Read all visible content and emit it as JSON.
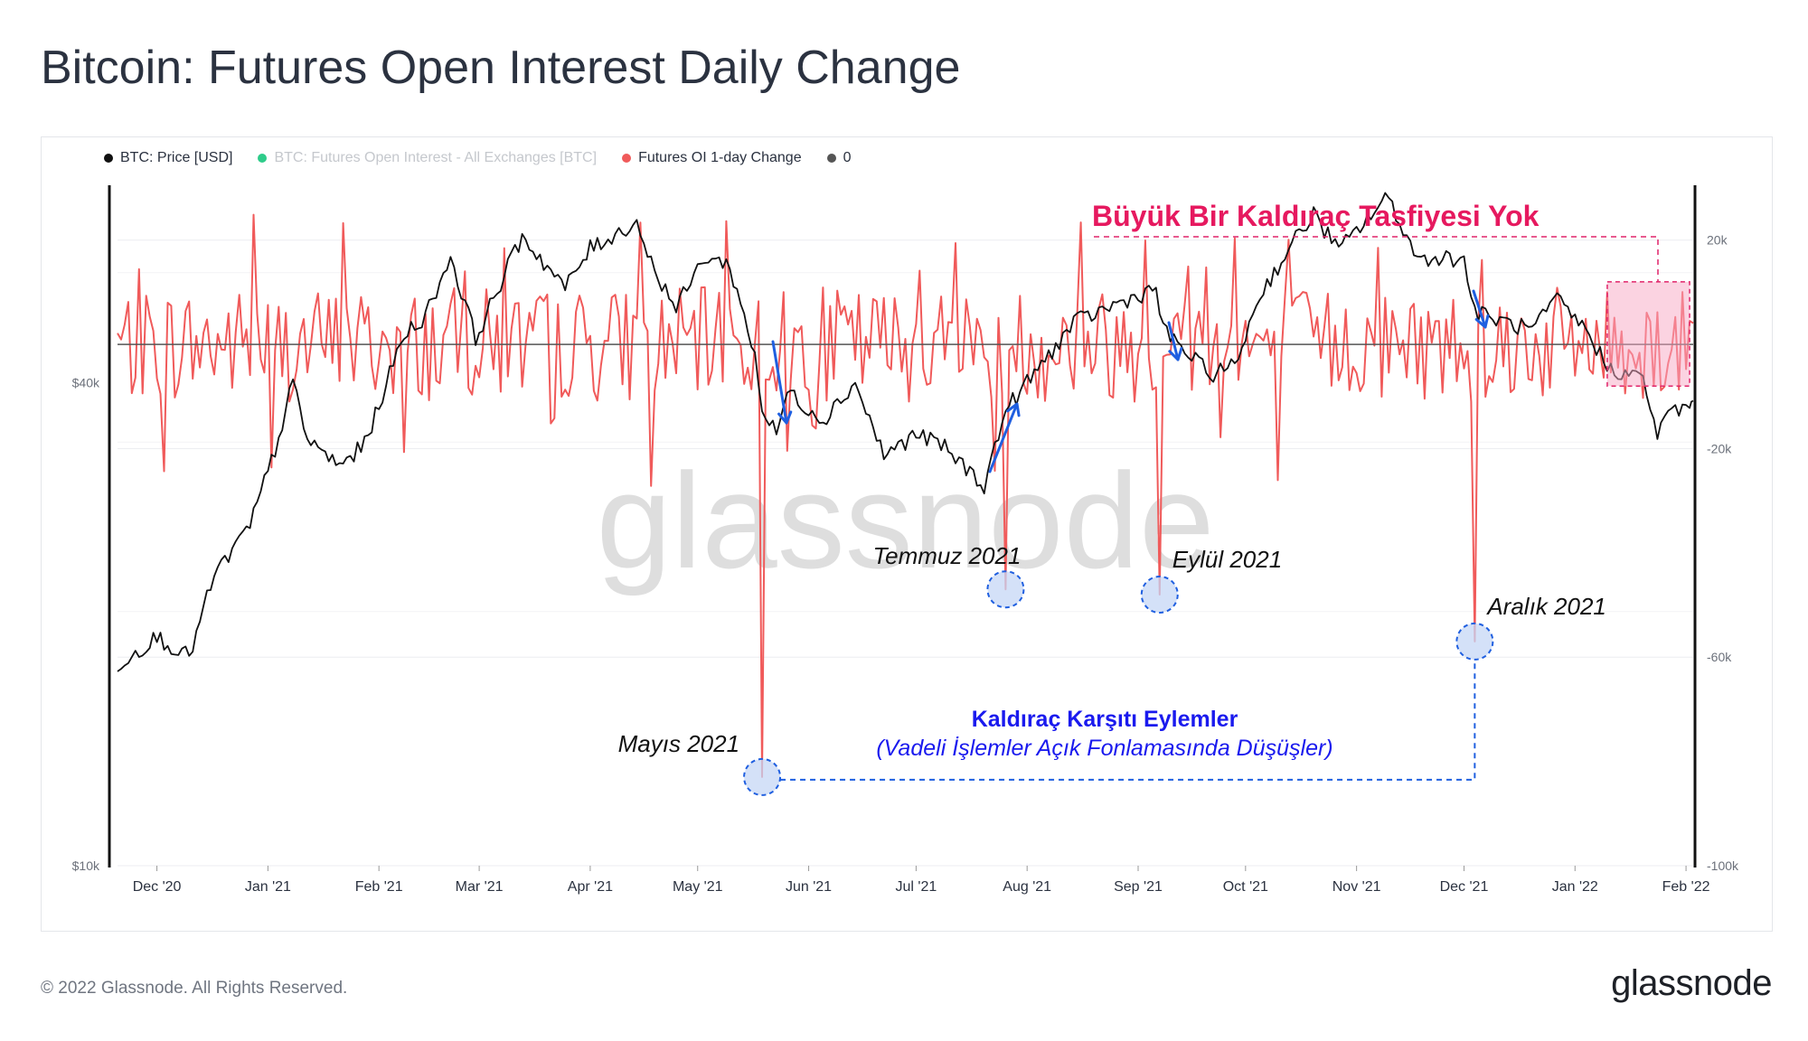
{
  "title": "Bitcoin: Futures Open Interest Daily Change",
  "legend": [
    {
      "label": "BTC: Price [USD]",
      "color": "#111111",
      "muted": false
    },
    {
      "label": "BTC: Futures Open Interest - All Exchanges [BTC]",
      "color": "#2ecc8a",
      "muted": true
    },
    {
      "label": "Futures OI 1-day Change",
      "color": "#f05a5a",
      "muted": false
    },
    {
      "label": "0",
      "color": "#555555",
      "muted": false
    }
  ],
  "footer": {
    "copyright": "© 2022 Glassnode. All Rights Reserved.",
    "brand": "glassnode"
  },
  "chart_data": {
    "type": "line",
    "title": "Bitcoin: Futures Open Interest Daily Change",
    "watermark": "glassnode",
    "x_range": [
      "2020-11-20",
      "2022-02-03"
    ],
    "x_ticks": [
      {
        "date": "2020-12-01",
        "label": "Dec '20"
      },
      {
        "date": "2021-01-01",
        "label": "Jan '21"
      },
      {
        "date": "2021-02-01",
        "label": "Feb '21"
      },
      {
        "date": "2021-03-01",
        "label": "Mar '21"
      },
      {
        "date": "2021-04-01",
        "label": "Apr '21"
      },
      {
        "date": "2021-05-01",
        "label": "May '21"
      },
      {
        "date": "2021-06-01",
        "label": "Jun '21"
      },
      {
        "date": "2021-07-01",
        "label": "Jul '21"
      },
      {
        "date": "2021-08-01",
        "label": "Aug '21"
      },
      {
        "date": "2021-09-01",
        "label": "Sep '21"
      },
      {
        "date": "2021-10-01",
        "label": "Oct '21"
      },
      {
        "date": "2021-11-01",
        "label": "Nov '21"
      },
      {
        "date": "2021-12-01",
        "label": "Dec '21"
      },
      {
        "date": "2022-01-01",
        "label": "Jan '22"
      },
      {
        "date": "2022-02-01",
        "label": "Feb '22"
      }
    ],
    "y_left": {
      "scale": "log",
      "range": [
        10000,
        70000
      ],
      "ticks": [
        {
          "value": 40000,
          "label": "$40k"
        },
        {
          "value": 10000,
          "label": "$10k"
        }
      ]
    },
    "y_right": {
      "scale": "linear",
      "range": [
        -100000,
        30000
      ],
      "ticks": [
        {
          "value": 20000,
          "label": "20k"
        },
        {
          "value": -20000,
          "label": "-20k"
        },
        {
          "value": -60000,
          "label": "-60k"
        },
        {
          "value": -100000,
          "label": "-100k"
        }
      ]
    },
    "series": [
      {
        "name": "BTC: Price [USD]",
        "axis": "left",
        "color": "#111111",
        "points": [
          [
            "2020-11-20",
            17800
          ],
          [
            "2020-12-01",
            19300
          ],
          [
            "2020-12-10",
            18200
          ],
          [
            "2020-12-17",
            23000
          ],
          [
            "2020-12-27",
            26500
          ],
          [
            "2021-01-03",
            33000
          ],
          [
            "2021-01-08",
            40000
          ],
          [
            "2021-01-12",
            34000
          ],
          [
            "2021-01-21",
            31500
          ],
          [
            "2021-01-28",
            33500
          ],
          [
            "2021-02-08",
            46000
          ],
          [
            "2021-02-14",
            48500
          ],
          [
            "2021-02-21",
            57500
          ],
          [
            "2021-02-28",
            45500
          ],
          [
            "2021-03-13",
            61000
          ],
          [
            "2021-03-25",
            52500
          ],
          [
            "2021-04-01",
            58800
          ],
          [
            "2021-04-14",
            63500
          ],
          [
            "2021-04-18",
            56500
          ],
          [
            "2021-04-25",
            49500
          ],
          [
            "2021-05-03",
            57500
          ],
          [
            "2021-05-10",
            56000
          ],
          [
            "2021-05-13",
            50000
          ],
          [
            "2021-05-17",
            43500
          ],
          [
            "2021-05-19",
            37000
          ],
          [
            "2021-05-23",
            34500
          ],
          [
            "2021-05-26",
            39000
          ],
          [
            "2021-06-05",
            36000
          ],
          [
            "2021-06-14",
            40000
          ],
          [
            "2021-06-22",
            32500
          ],
          [
            "2021-07-01",
            34500
          ],
          [
            "2021-07-08",
            33500
          ],
          [
            "2021-07-20",
            29800
          ],
          [
            "2021-07-26",
            37000
          ],
          [
            "2021-08-01",
            40000
          ],
          [
            "2021-08-14",
            47500
          ],
          [
            "2021-08-23",
            49500
          ],
          [
            "2021-09-06",
            52500
          ],
          [
            "2021-09-08",
            46500
          ],
          [
            "2021-09-21",
            41000
          ],
          [
            "2021-09-28",
            42000
          ],
          [
            "2021-10-05",
            51500
          ],
          [
            "2021-10-15",
            60500
          ],
          [
            "2021-10-20",
            65000
          ],
          [
            "2021-10-27",
            58500
          ],
          [
            "2021-11-08",
            67000
          ],
          [
            "2021-11-10",
            68000
          ],
          [
            "2021-11-18",
            57000
          ],
          [
            "2021-11-24",
            57500
          ],
          [
            "2021-12-01",
            57000
          ],
          [
            "2021-12-04",
            49000
          ],
          [
            "2021-12-10",
            48000
          ],
          [
            "2021-12-20",
            46500
          ],
          [
            "2021-12-27",
            50800
          ],
          [
            "2022-01-05",
            46000
          ],
          [
            "2022-01-10",
            41800
          ],
          [
            "2022-01-20",
            40500
          ],
          [
            "2022-01-24",
            34500
          ],
          [
            "2022-01-28",
            37000
          ],
          [
            "2022-02-02",
            37200
          ],
          [
            "2022-02-03",
            38000
          ]
        ]
      },
      {
        "name": "Futures OI 1-day Change",
        "axis": "right",
        "color": "#f05a5a",
        "description": "oscillates roughly between -15k and +15k around zero, with large negative spikes",
        "spikes": [
          {
            "date": "2021-05-19",
            "value": -83000
          },
          {
            "date": "2021-07-26",
            "value": -47000
          },
          {
            "date": "2021-09-07",
            "value": -48000
          },
          {
            "date": "2021-12-04",
            "value": -57000
          }
        ]
      },
      {
        "name": "0",
        "axis": "right",
        "color": "#555555",
        "value": 0
      }
    ],
    "annotations": {
      "no_liquidation": "Büyük Bir Kaldıraç Tasfiyesi Yok",
      "events": [
        {
          "label": "Mayıs 2021",
          "date": "2021-05-19",
          "value": -83000
        },
        {
          "label": "Temmuz 2021",
          "date": "2021-07-26",
          "value": -47000
        },
        {
          "label": "Eylül 2021",
          "date": "2021-09-07",
          "value": -48000
        },
        {
          "label": "Aralık 2021",
          "date": "2021-12-04",
          "value": -57000
        }
      ],
      "group_title": "Kaldıraç Karşıtı Eylemler",
      "group_subtitle": "(Vadeli İşlemler Açık Fonlamasında Düşüşler)"
    }
  }
}
